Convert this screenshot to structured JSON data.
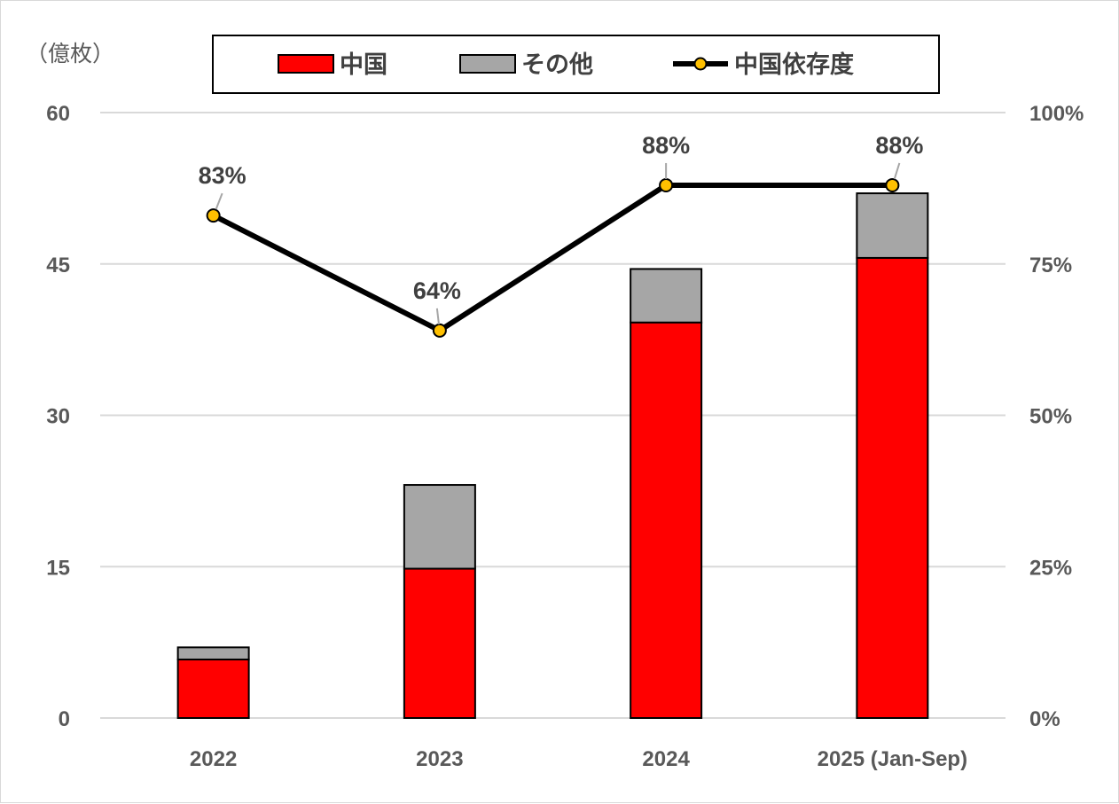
{
  "chart_data": {
    "type": "bar",
    "stacked": true,
    "unit_label": "（億枚）",
    "categories": [
      "2022",
      "2023",
      "2024",
      "2025 (Jan-Sep)"
    ],
    "series": [
      {
        "name": "中国",
        "values": [
          5.8,
          14.8,
          39.2,
          45.6
        ],
        "color": "#ff0000"
      },
      {
        "name": "その他",
        "values": [
          1.2,
          8.3,
          5.3,
          6.4
        ],
        "color": "#a6a6a6"
      }
    ],
    "line_series": {
      "name": "中国依存度",
      "values": [
        83,
        64,
        88,
        88
      ],
      "labels": [
        "83%",
        "64%",
        "88%",
        "88%"
      ],
      "axis": "secondary",
      "color": "#000000",
      "marker_color": "#ffc000"
    },
    "y_left": {
      "ylim": [
        0,
        60
      ],
      "ticks": [
        "0",
        "15",
        "30",
        "45",
        "60"
      ]
    },
    "y_right": {
      "ylim": [
        0,
        100
      ],
      "ticks": [
        "0%",
        "25%",
        "50%",
        "75%",
        "100%"
      ]
    },
    "grid": true,
    "legend_position": "top"
  }
}
